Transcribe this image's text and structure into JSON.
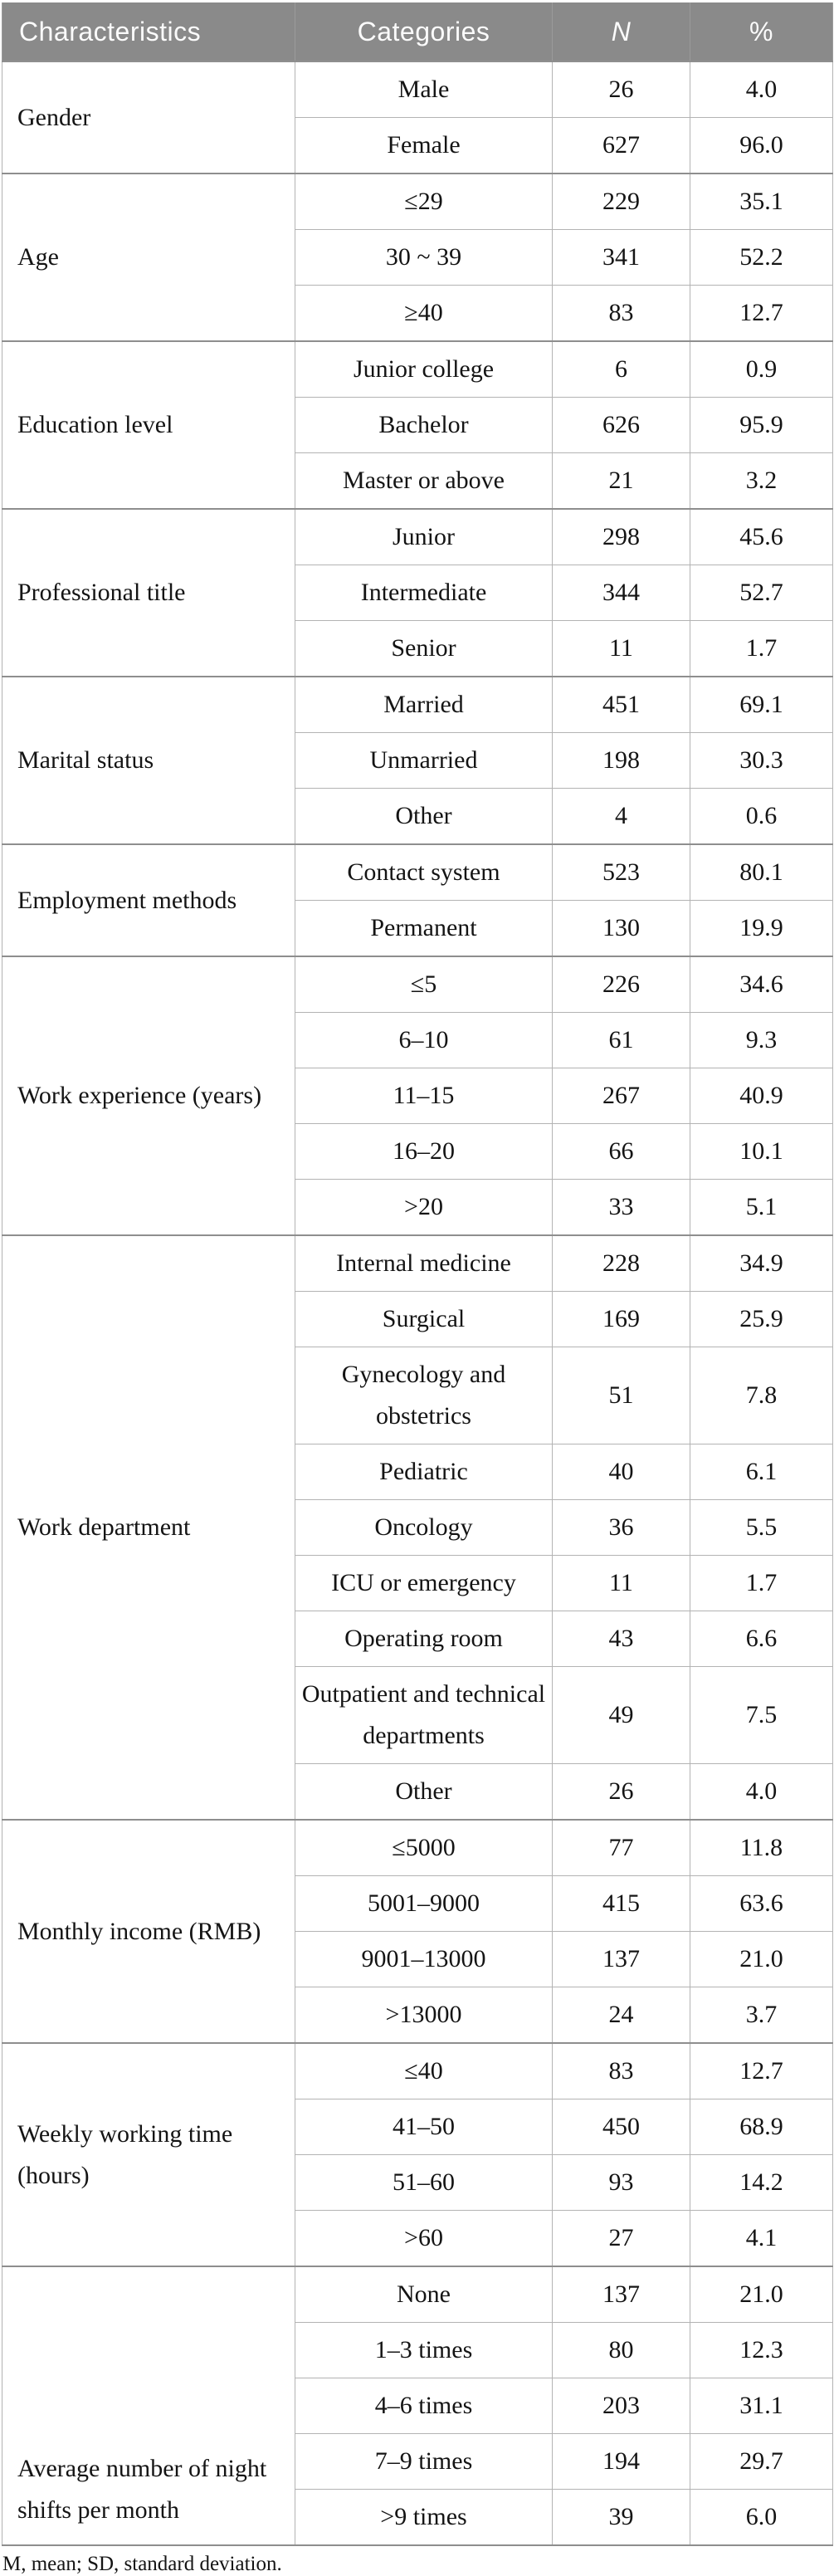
{
  "table": {
    "columns": [
      {
        "label": "Characteristics"
      },
      {
        "label": "Categories"
      },
      {
        "label": "N"
      },
      {
        "label": "%"
      }
    ],
    "groups": [
      {
        "characteristic": "Gender",
        "rows": [
          {
            "category": "Male",
            "n": "26",
            "pct": "4.0"
          },
          {
            "category": "Female",
            "n": "627",
            "pct": "96.0"
          }
        ]
      },
      {
        "characteristic": "Age",
        "rows": [
          {
            "category": "≤29",
            "n": "229",
            "pct": "35.1"
          },
          {
            "category": "30 ~ 39",
            "n": "341",
            "pct": "52.2"
          },
          {
            "category": "≥40",
            "n": "83",
            "pct": "12.7"
          }
        ]
      },
      {
        "characteristic": "Education level",
        "rows": [
          {
            "category": "Junior college",
            "n": "6",
            "pct": "0.9"
          },
          {
            "category": "Bachelor",
            "n": "626",
            "pct": "95.9"
          },
          {
            "category": "Master or above",
            "n": "21",
            "pct": "3.2"
          }
        ]
      },
      {
        "characteristic": "Professional title",
        "rows": [
          {
            "category": "Junior",
            "n": "298",
            "pct": "45.6"
          },
          {
            "category": "Intermediate",
            "n": "344",
            "pct": "52.7"
          },
          {
            "category": "Senior",
            "n": "11",
            "pct": "1.7"
          }
        ]
      },
      {
        "characteristic": "Marital status",
        "rows": [
          {
            "category": "Married",
            "n": "451",
            "pct": "69.1"
          },
          {
            "category": "Unmarried",
            "n": "198",
            "pct": "30.3"
          },
          {
            "category": "Other",
            "n": "4",
            "pct": "0.6"
          }
        ]
      },
      {
        "characteristic": "Employment methods",
        "rows": [
          {
            "category": "Contact system",
            "n": "523",
            "pct": "80.1"
          },
          {
            "category": "Permanent",
            "n": "130",
            "pct": "19.9"
          }
        ]
      },
      {
        "characteristic": "Work experience (years)",
        "rows": [
          {
            "category": "≤5",
            "n": "226",
            "pct": "34.6"
          },
          {
            "category": "6–10",
            "n": "61",
            "pct": "9.3"
          },
          {
            "category": "11–15",
            "n": "267",
            "pct": "40.9"
          },
          {
            "category": "16–20",
            "n": "66",
            "pct": "10.1"
          },
          {
            "category": ">20",
            "n": "33",
            "pct": "5.1"
          }
        ]
      },
      {
        "characteristic": "Work department",
        "rows": [
          {
            "category": "Internal medicine",
            "n": "228",
            "pct": "34.9"
          },
          {
            "category": "Surgical",
            "n": "169",
            "pct": "25.9"
          },
          {
            "category": "Gynecology and obstetrics",
            "n": "51",
            "pct": "7.8"
          },
          {
            "category": "Pediatric",
            "n": "40",
            "pct": "6.1"
          },
          {
            "category": "Oncology",
            "n": "36",
            "pct": "5.5"
          },
          {
            "category": "ICU or emergency",
            "n": "11",
            "pct": "1.7"
          },
          {
            "category": "Operating room",
            "n": "43",
            "pct": "6.6"
          },
          {
            "category": "Outpatient and technical departments",
            "n": "49",
            "pct": "7.5"
          },
          {
            "category": "Other",
            "n": "26",
            "pct": "4.0"
          }
        ]
      },
      {
        "characteristic": "Monthly income (RMB)",
        "rows": [
          {
            "category": "≤5000",
            "n": "77",
            "pct": "11.8"
          },
          {
            "category": "5001–9000",
            "n": "415",
            "pct": "63.6"
          },
          {
            "category": "9001–13000",
            "n": "137",
            "pct": "21.0"
          },
          {
            "category": ">13000",
            "n": "24",
            "pct": "3.7"
          }
        ]
      },
      {
        "characteristic": "Weekly working time (hours)",
        "rows": [
          {
            "category": "≤40",
            "n": "83",
            "pct": "12.7"
          },
          {
            "category": "41–50",
            "n": "450",
            "pct": "68.9"
          },
          {
            "category": "51–60",
            "n": "93",
            "pct": "14.2"
          },
          {
            "category": ">60",
            "n": "27",
            "pct": "4.1"
          }
        ]
      },
      {
        "characteristic": "Average number of night shifts per month",
        "rows": [
          {
            "category": "None",
            "n": "137",
            "pct": "21.0"
          },
          {
            "category": "1–3 times",
            "n": "80",
            "pct": "12.3"
          },
          {
            "category": "4–6 times",
            "n": "203",
            "pct": "31.1"
          },
          {
            "category": "7–9 times",
            "n": "194",
            "pct": "29.7"
          },
          {
            "category": ">9 times",
            "n": "39",
            "pct": "6.0"
          }
        ]
      }
    ],
    "footnote": "M, mean; SD, standard deviation."
  },
  "colors": {
    "header_bg": "#8a8a8a",
    "header_text": "#fbfbfb",
    "grid_light": "#b3b3b3",
    "grid_dark": "#8e8e8e",
    "body_text": "#141414"
  },
  "chart_data": {
    "type": "table",
    "title": "",
    "columns": [
      "Characteristics",
      "Categories",
      "N",
      "%"
    ],
    "note": "M, mean; SD, standard deviation."
  }
}
